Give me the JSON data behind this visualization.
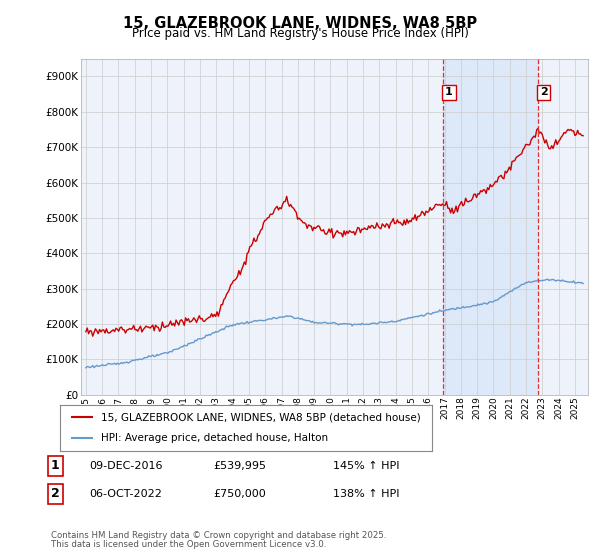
{
  "title": "15, GLAZEBROOK LANE, WIDNES, WA8 5BP",
  "subtitle": "Price paid vs. HM Land Registry's House Price Index (HPI)",
  "legend_house": "15, GLAZEBROOK LANE, WIDNES, WA8 5BP (detached house)",
  "legend_hpi": "HPI: Average price, detached house, Halton",
  "footnote_line1": "Contains HM Land Registry data © Crown copyright and database right 2025.",
  "footnote_line2": "This data is licensed under the Open Government Licence v3.0.",
  "t1_label": "1",
  "t1_date": "09-DEC-2016",
  "t1_price": "£539,995",
  "t1_hpi": "145% ↑ HPI",
  "t1_year": 2016.93,
  "t2_label": "2",
  "t2_date": "06-OCT-2022",
  "t2_price": "£750,000",
  "t2_hpi": "138% ↑ HPI",
  "t2_year": 2022.75,
  "ylim_min": 0,
  "ylim_max": 950000,
  "xlim_min": 1994.7,
  "xlim_max": 2025.8,
  "yticks": [
    0,
    100000,
    200000,
    300000,
    400000,
    500000,
    600000,
    700000,
    800000,
    900000
  ],
  "ytick_labels": [
    "£0",
    "£100K",
    "£200K",
    "£300K",
    "£400K",
    "£500K",
    "£600K",
    "£700K",
    "£800K",
    "£900K"
  ],
  "xticks": [
    1995,
    1996,
    1997,
    1998,
    1999,
    2000,
    2001,
    2002,
    2003,
    2004,
    2005,
    2006,
    2007,
    2008,
    2009,
    2010,
    2011,
    2012,
    2013,
    2014,
    2015,
    2016,
    2017,
    2018,
    2019,
    2020,
    2021,
    2022,
    2023,
    2024,
    2025
  ],
  "house_color": "#cc0000",
  "hpi_color": "#6699cc",
  "vline_color": "#dd3333",
  "shade_color": "#dde8f8",
  "plot_bg": "#eef2fa",
  "grid_color": "#cccccc",
  "marker_edge_color": "#cc0000"
}
